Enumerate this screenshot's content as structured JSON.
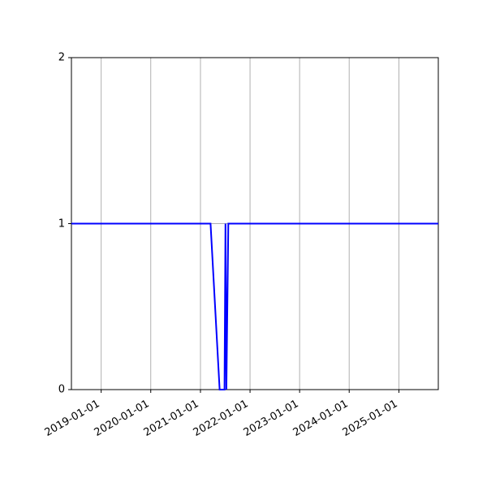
{
  "figure": {
    "background": "#ffffff",
    "axes_background": "#ffffff"
  },
  "chart_data": {
    "type": "line",
    "title": "",
    "xlabel": "",
    "ylabel": "",
    "grid": true,
    "legend": false,
    "xlim": [
      "2018-05-27",
      "2025-10-18"
    ],
    "ylim": [
      0,
      2
    ],
    "x_tick_labels": [
      "2019-01-01",
      "2020-01-01",
      "2021-01-01",
      "2022-01-01",
      "2023-01-01",
      "2024-01-01",
      "2025-01-01"
    ],
    "y_ticks": [
      {
        "value": 0,
        "label": "0"
      },
      {
        "value": 1,
        "label": "1"
      },
      {
        "value": 2,
        "label": "2"
      }
    ],
    "colors": {
      "line": "#0000ff",
      "grid": "#b0b0b0",
      "spine": "#000000",
      "tick_text": "#000000"
    },
    "line_width": 2,
    "series": [
      {
        "points": [
          [
            "2018-05-27",
            1
          ],
          [
            "2021-03-16",
            1
          ],
          [
            "2021-05-22",
            0
          ],
          [
            "2021-06-27",
            0
          ],
          [
            "2021-07-04",
            1
          ],
          [
            "2021-07-11",
            0
          ],
          [
            "2021-07-25",
            1
          ],
          [
            "2025-10-18",
            1
          ]
        ]
      }
    ]
  }
}
